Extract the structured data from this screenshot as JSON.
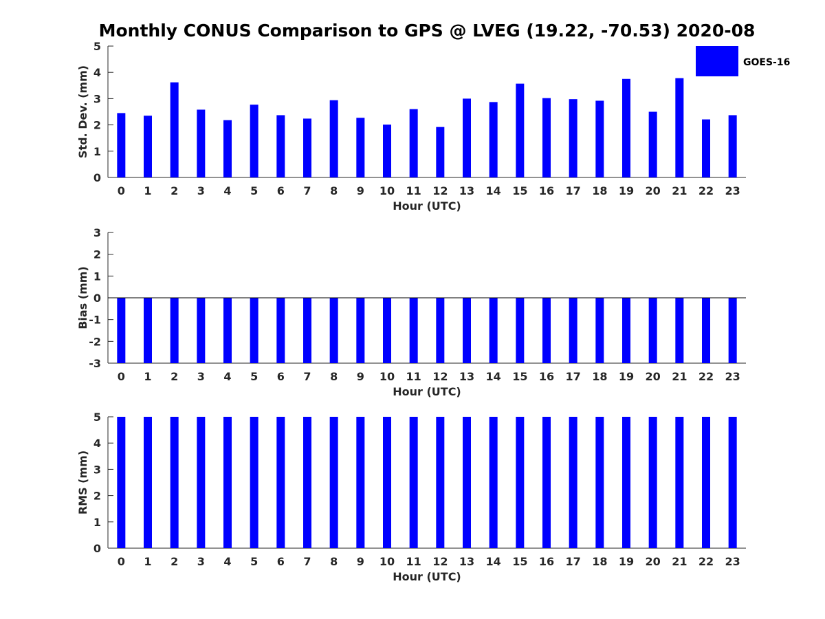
{
  "chart_data": {
    "title": "Monthly CONUS Comparison to GPS @ LVEG (19.22, -70.53) 2020-08",
    "legend": {
      "label": "GOES-16",
      "color": "#0000ff",
      "placement": "top-right"
    },
    "panels": [
      {
        "type": "bar",
        "xlabel": "Hour (UTC)",
        "ylabel": "Std. Dev. (mm)",
        "ylim": [
          0,
          5
        ],
        "yticks": [
          0,
          1,
          2,
          3,
          4,
          5
        ],
        "categories": [
          "0",
          "1",
          "2",
          "3",
          "4",
          "5",
          "6",
          "7",
          "8",
          "9",
          "10",
          "11",
          "12",
          "13",
          "14",
          "15",
          "16",
          "17",
          "18",
          "19",
          "20",
          "21",
          "22",
          "23"
        ],
        "series": [
          {
            "name": "GOES-16",
            "values": [
              2.45,
              2.35,
              3.62,
              2.58,
              2.18,
              2.77,
              2.37,
              2.24,
              2.94,
              2.27,
              2.01,
              2.6,
              1.92,
              3.0,
              2.87,
              3.57,
              3.02,
              2.98,
              2.92,
              3.75,
              2.5,
              3.78,
              2.21,
              2.37
            ]
          }
        ]
      },
      {
        "type": "bar",
        "xlabel": "Hour (UTC)",
        "ylabel": "Bias (mm)",
        "ylim": [
          -3,
          3
        ],
        "yticks": [
          -3,
          -2,
          -1,
          0,
          1,
          2,
          3
        ],
        "categories": [
          "0",
          "1",
          "2",
          "3",
          "4",
          "5",
          "6",
          "7",
          "8",
          "9",
          "10",
          "11",
          "12",
          "13",
          "14",
          "15",
          "16",
          "17",
          "18",
          "19",
          "20",
          "21",
          "22",
          "23"
        ],
        "series": [
          {
            "name": "GOES-16",
            "values": [
              -3,
              -3,
              -3,
              -3,
              -3,
              -3,
              -3,
              -3,
              -3,
              -3,
              -3,
              -3,
              -3,
              -3,
              -3,
              -3,
              -3,
              -3,
              -3,
              -3,
              -3,
              -3,
              -3,
              -3
            ]
          }
        ]
      },
      {
        "type": "bar",
        "xlabel": "Hour (UTC)",
        "ylabel": "RMS (mm)",
        "ylim": [
          0,
          5
        ],
        "yticks": [
          0,
          1,
          2,
          3,
          4,
          5
        ],
        "categories": [
          "0",
          "1",
          "2",
          "3",
          "4",
          "5",
          "6",
          "7",
          "8",
          "9",
          "10",
          "11",
          "12",
          "13",
          "14",
          "15",
          "16",
          "17",
          "18",
          "19",
          "20",
          "21",
          "22",
          "23"
        ],
        "series": [
          {
            "name": "GOES-16",
            "values": [
              5,
              5,
              5,
              5,
              5,
              5,
              5,
              5,
              5,
              5,
              5,
              5,
              5,
              5,
              5,
              5,
              5,
              5,
              5,
              5,
              5,
              5,
              5,
              5
            ]
          }
        ]
      }
    ]
  }
}
